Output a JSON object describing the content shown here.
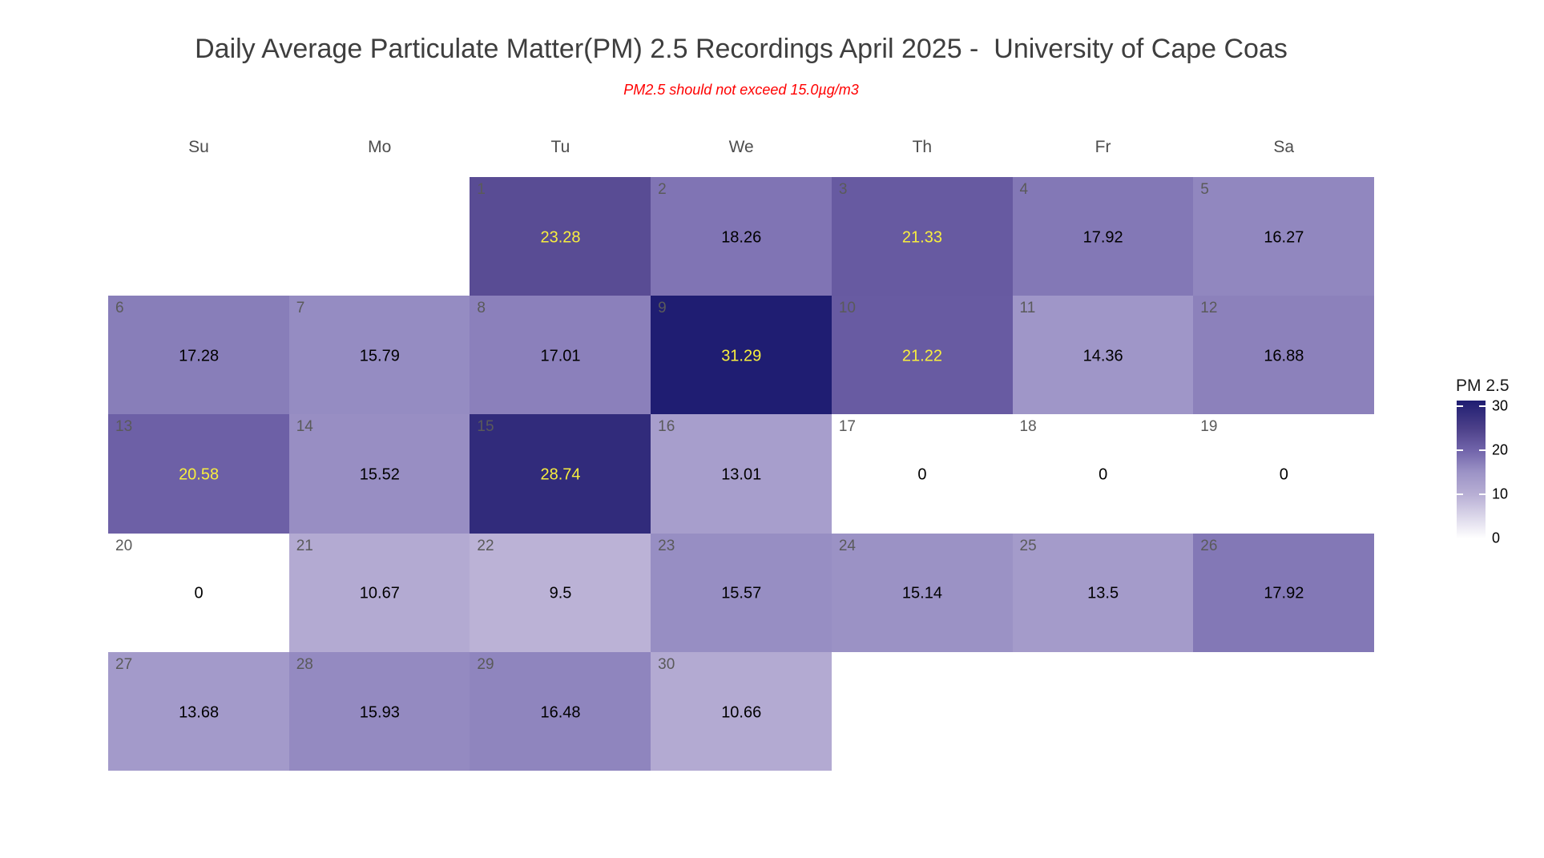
{
  "colors": {
    "background": "#FFFFFF",
    "title_text": "#3E3E3E",
    "subtitle_text": "#FF0000",
    "weekday_text": "#4D4D4D",
    "day_number_text": "#5A5A5A",
    "value_text": "#000000",
    "value_text_high": "#F8EE3E",
    "high_value_threshold": 20,
    "scale_stops": [
      [
        0,
        "#FFFFFF"
      ],
      [
        10,
        "#B7AED4"
      ],
      [
        15,
        "#9C93C6"
      ],
      [
        20,
        "#7164AA"
      ],
      [
        25,
        "#4C4089"
      ],
      [
        31.29,
        "#1F1D72"
      ]
    ]
  },
  "chart_data": {
    "type": "heatmap",
    "subtype": "calendar",
    "title": "Daily Average Particulate Matter(PM) 2.5 Recordings April 2025 -  University of Cape Coas",
    "subtitle": "PM2.5 should not exceed 15.0µg/m3",
    "month": "April 2025",
    "unit": "µg/m3",
    "threshold": 15.0,
    "legend_title": "PM 2.5",
    "legend_ticks": [
      30,
      20,
      10,
      0
    ],
    "color_range": [
      0,
      31.29
    ],
    "weekdays": [
      "Su",
      "Mo",
      "Tu",
      "We",
      "Th",
      "Fr",
      "Sa"
    ],
    "first_day_weekday": "Tu",
    "days": [
      {
        "day": 1,
        "weekday": "Tu",
        "value": 23.28
      },
      {
        "day": 2,
        "weekday": "We",
        "value": 18.26
      },
      {
        "day": 3,
        "weekday": "Th",
        "value": 21.33
      },
      {
        "day": 4,
        "weekday": "Fr",
        "value": 17.92
      },
      {
        "day": 5,
        "weekday": "Sa",
        "value": 16.27
      },
      {
        "day": 6,
        "weekday": "Su",
        "value": 17.28
      },
      {
        "day": 7,
        "weekday": "Mo",
        "value": 15.79
      },
      {
        "day": 8,
        "weekday": "Tu",
        "value": 17.01
      },
      {
        "day": 9,
        "weekday": "We",
        "value": 31.29
      },
      {
        "day": 10,
        "weekday": "Th",
        "value": 21.22
      },
      {
        "day": 11,
        "weekday": "Fr",
        "value": 14.36
      },
      {
        "day": 12,
        "weekday": "Sa",
        "value": 16.88
      },
      {
        "day": 13,
        "weekday": "Su",
        "value": 20.58
      },
      {
        "day": 14,
        "weekday": "Mo",
        "value": 15.52
      },
      {
        "day": 15,
        "weekday": "Tu",
        "value": 28.74
      },
      {
        "day": 16,
        "weekday": "We",
        "value": 13.01
      },
      {
        "day": 17,
        "weekday": "Th",
        "value": 0
      },
      {
        "day": 18,
        "weekday": "Fr",
        "value": 0
      },
      {
        "day": 19,
        "weekday": "Sa",
        "value": 0
      },
      {
        "day": 20,
        "weekday": "Su",
        "value": 0
      },
      {
        "day": 21,
        "weekday": "Mo",
        "value": 10.67
      },
      {
        "day": 22,
        "weekday": "Tu",
        "value": 9.5
      },
      {
        "day": 23,
        "weekday": "We",
        "value": 15.57
      },
      {
        "day": 24,
        "weekday": "Th",
        "value": 15.14
      },
      {
        "day": 25,
        "weekday": "Fr",
        "value": 13.5
      },
      {
        "day": 26,
        "weekday": "Sa",
        "value": 17.92
      },
      {
        "day": 27,
        "weekday": "Su",
        "value": 13.68
      },
      {
        "day": 28,
        "weekday": "Mo",
        "value": 15.93
      },
      {
        "day": 29,
        "weekday": "Tu",
        "value": 16.48
      },
      {
        "day": 30,
        "weekday": "We",
        "value": 10.66
      }
    ]
  }
}
